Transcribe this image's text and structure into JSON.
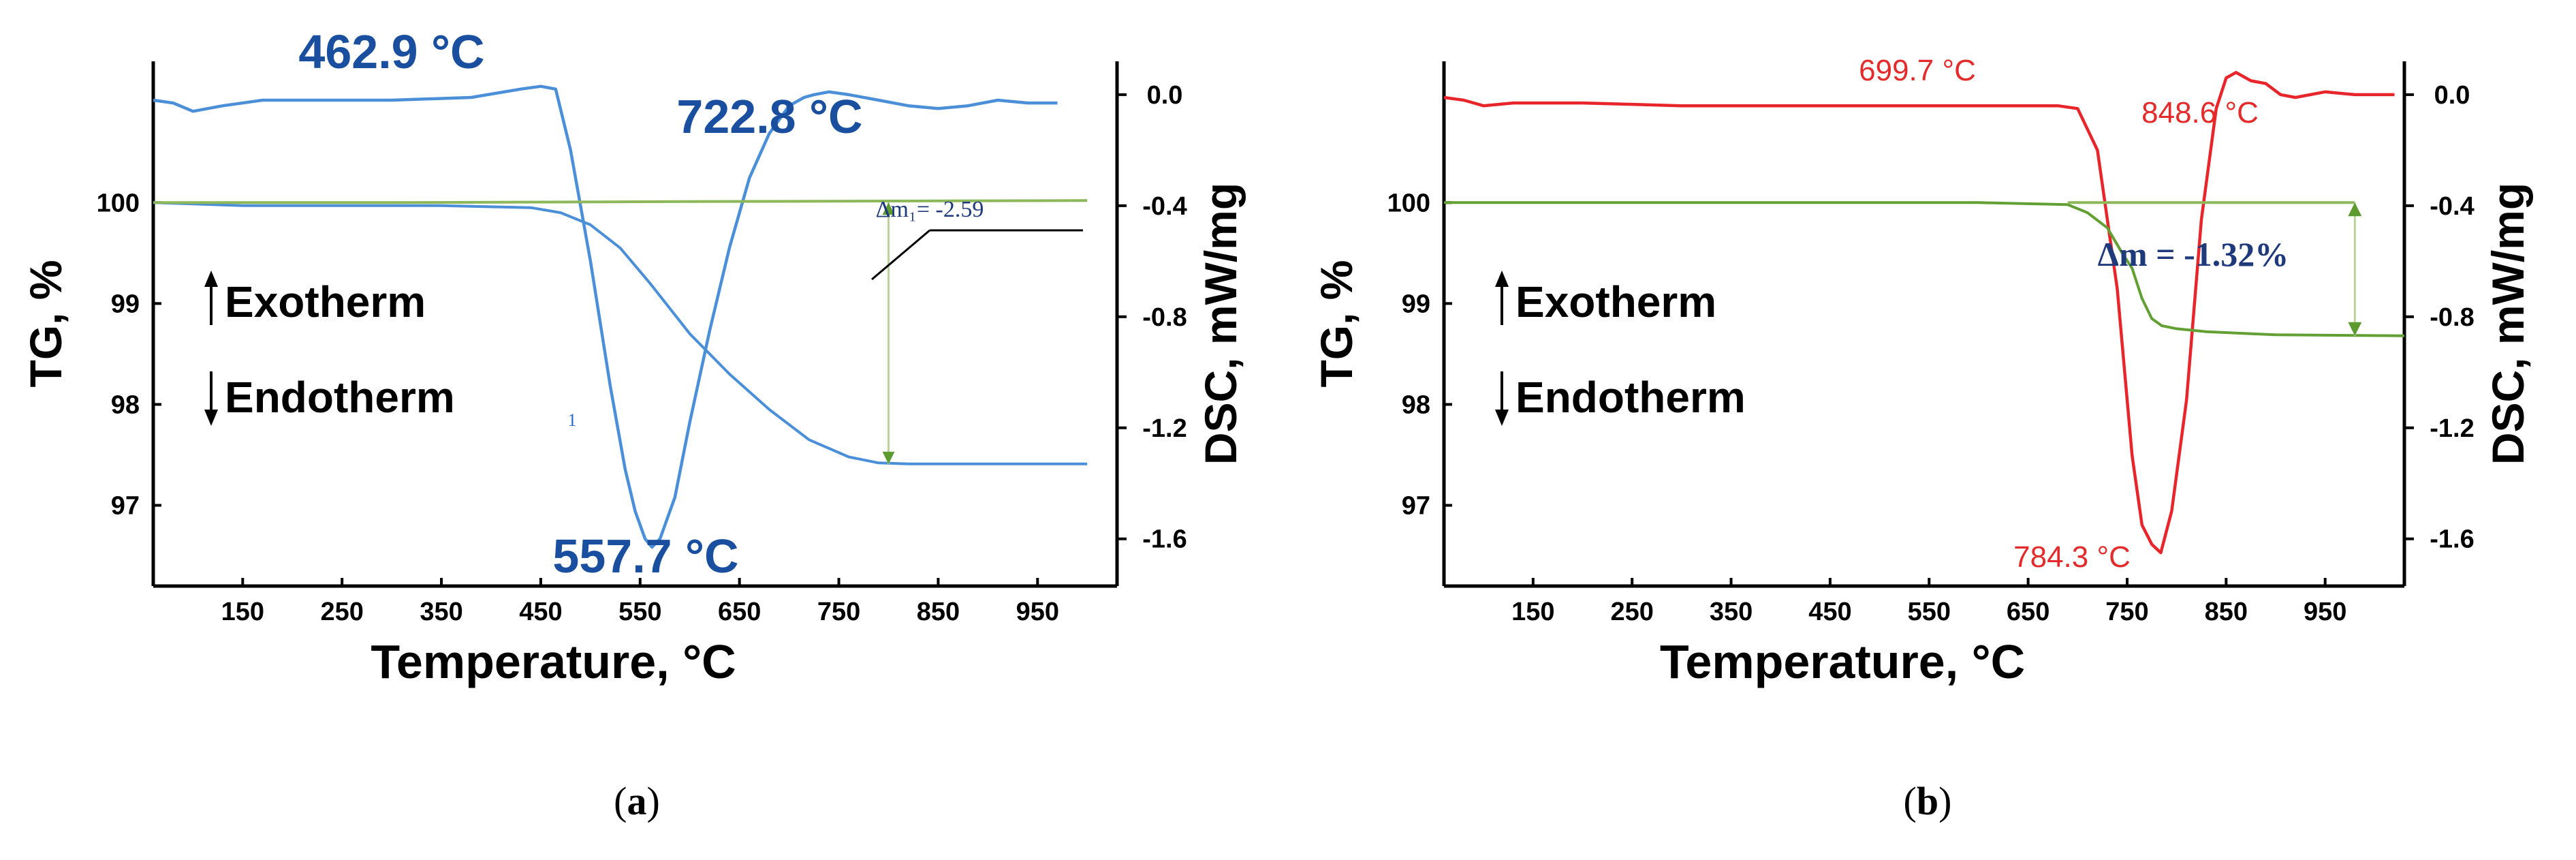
{
  "chart_data": [
    {
      "type": "line",
      "panel": "a",
      "caption": "a",
      "xlabel": "Temperature, °C",
      "ylabel_left": "TG, %",
      "ylabel_right": "DSC, mW/mg",
      "xlim": [
        60,
        1030
      ],
      "x_ticks": [
        150,
        250,
        350,
        450,
        550,
        650,
        750,
        850,
        950
      ],
      "ylim_left": [
        96.2,
        101.4
      ],
      "y_ticks_left": [
        97,
        98,
        99,
        100
      ],
      "ylim_right": [
        -1.77,
        0.12
      ],
      "y_ticks_right": [
        0.0,
        -0.4,
        -0.8,
        -1.2,
        -1.6
      ],
      "legend": [
        "Exotherm",
        "Endotherm"
      ],
      "series": [
        {
          "axis": "right",
          "color": "#4a8fd8",
          "x": [
            60,
            80,
            100,
            130,
            170,
            220,
            300,
            380,
            430,
            450,
            465,
            480,
            500,
            520,
            535,
            545,
            555,
            562,
            570,
            585,
            600,
            620,
            640,
            660,
            680,
            700,
            715,
            725,
            740,
            760,
            790,
            820,
            850,
            880,
            910,
            940,
            970
          ],
          "y": [
            -0.02,
            -0.03,
            -0.06,
            -0.04,
            -0.02,
            -0.02,
            -0.02,
            -0.01,
            0.02,
            0.03,
            0.02,
            -0.2,
            -0.6,
            -1.05,
            -1.35,
            -1.5,
            -1.6,
            -1.63,
            -1.6,
            -1.45,
            -1.18,
            -0.85,
            -0.55,
            -0.3,
            -0.14,
            -0.04,
            -0.01,
            0.0,
            0.01,
            0.0,
            -0.02,
            -0.04,
            -0.05,
            -0.04,
            -0.02,
            -0.03,
            -0.03
          ]
        },
        {
          "axis": "left",
          "color": "#4a8fd8",
          "x": [
            60,
            150,
            250,
            350,
            440,
            470,
            500,
            530,
            560,
            600,
            640,
            680,
            720,
            760,
            790,
            820,
            1000
          ],
          "y": [
            100.0,
            99.97,
            99.97,
            99.97,
            99.95,
            99.9,
            99.78,
            99.55,
            99.2,
            98.7,
            98.3,
            97.95,
            97.65,
            97.48,
            97.42,
            97.41,
            97.41
          ]
        },
        {
          "axis": "left",
          "color": "#8cb85a",
          "x": [
            60,
            300,
            600,
            1000
          ],
          "y": [
            100.0,
            100.0,
            100.01,
            100.02
          ]
        }
      ],
      "annotations": [
        {
          "text": "462.9 °C",
          "x": 462.9
        },
        {
          "text": "722.8 °C",
          "x": 722.8
        },
        {
          "text": "557.7 °C",
          "x": 557.7
        },
        {
          "text": "Δm₁= -2.59"
        },
        {
          "text": "1"
        }
      ]
    },
    {
      "type": "line",
      "panel": "b",
      "caption": "b",
      "xlabel": "Temperature, °C",
      "ylabel_left": "TG, %",
      "ylabel_right": "DSC, mW/mg",
      "xlim": [
        60,
        1030
      ],
      "x_ticks": [
        150,
        250,
        350,
        450,
        550,
        650,
        750,
        850,
        950
      ],
      "ylim_left": [
        96.2,
        101.4
      ],
      "y_ticks_left": [
        97,
        98,
        99,
        100
      ],
      "ylim_right": [
        -1.77,
        0.12
      ],
      "y_ticks_right": [
        0.0,
        -0.4,
        -0.8,
        -1.2,
        -1.6
      ],
      "legend": [
        "Exotherm",
        "Endotherm"
      ],
      "series": [
        {
          "axis": "right",
          "color": "#e8252b",
          "x": [
            60,
            80,
            100,
            130,
            200,
            300,
            400,
            500,
            600,
            680,
            700,
            720,
            740,
            755,
            765,
            775,
            784,
            795,
            810,
            825,
            840,
            850,
            860,
            875,
            890,
            905,
            920,
            950,
            980,
            1020
          ],
          "y": [
            -0.01,
            -0.02,
            -0.04,
            -0.03,
            -0.03,
            -0.04,
            -0.04,
            -0.04,
            -0.04,
            -0.04,
            -0.05,
            -0.2,
            -0.7,
            -1.3,
            -1.55,
            -1.62,
            -1.65,
            -1.5,
            -1.1,
            -0.45,
            -0.05,
            0.06,
            0.08,
            0.05,
            0.04,
            0.0,
            -0.01,
            0.01,
            0.0,
            0.0
          ]
        },
        {
          "axis": "left",
          "color": "#63a034",
          "x": [
            60,
            300,
            600,
            690,
            710,
            730,
            745,
            755,
            765,
            775,
            785,
            800,
            830,
            900,
            1030
          ],
          "y": [
            100.0,
            100.0,
            100.0,
            99.98,
            99.9,
            99.75,
            99.5,
            99.35,
            99.05,
            98.85,
            98.78,
            98.75,
            98.72,
            98.69,
            98.68
          ]
        },
        {
          "axis": "left",
          "color": "#8cb85a",
          "x": [
            690,
            980
          ],
          "y": [
            100.0,
            100.0
          ]
        }
      ],
      "annotations": [
        {
          "text": "699.7 °C",
          "x": 699.7
        },
        {
          "text": "848.6 °C",
          "x": 848.6
        },
        {
          "text": "784.3 °C",
          "x": 784.3
        },
        {
          "text": "Δm = -1.32%"
        }
      ]
    }
  ]
}
